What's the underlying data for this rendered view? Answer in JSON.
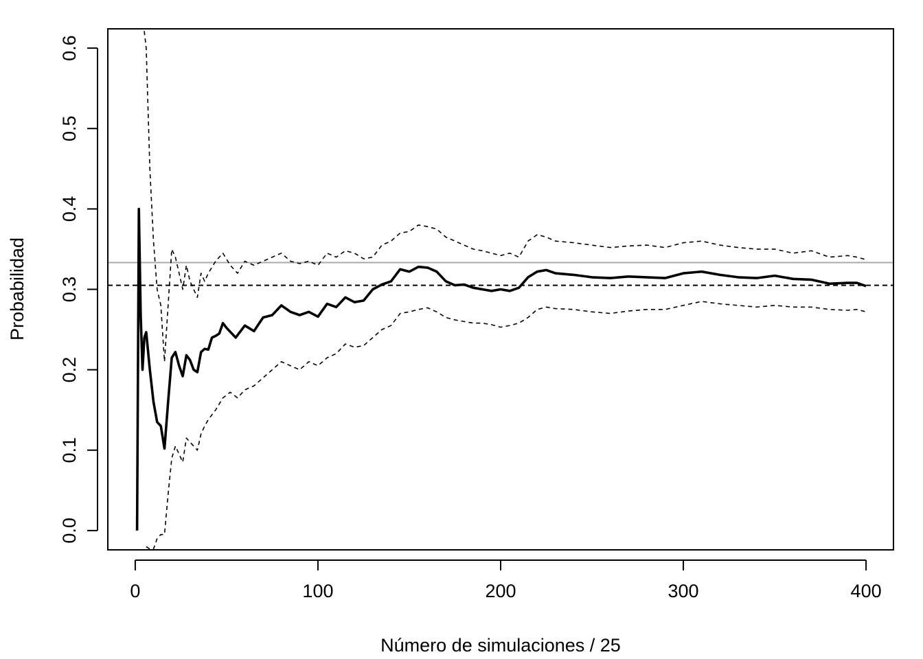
{
  "chart_data": {
    "type": "line",
    "title": "",
    "xlabel": "Número de simulaciones / 25",
    "ylabel": "Probabilidad",
    "xlim": [
      -15,
      415
    ],
    "ylim": [
      -0.024,
      0.624
    ],
    "xticks": [
      0,
      100,
      200,
      300,
      400
    ],
    "xtick_labels": [
      "0",
      "100",
      "200",
      "300",
      "400"
    ],
    "yticks": [
      0.0,
      0.1,
      0.2,
      0.3,
      0.4,
      0.5,
      0.6
    ],
    "ytick_labels": [
      "0.0",
      "0.1",
      "0.2",
      "0.3",
      "0.4",
      "0.5",
      "0.6"
    ],
    "grid": false,
    "legend": "none",
    "reference_lines": [
      {
        "y": 0.3333,
        "color": "#a8a8a8",
        "style": "solid"
      },
      {
        "y": 0.305,
        "color": "#000000",
        "style": "dashed"
      }
    ],
    "series": [
      {
        "role": "estimate",
        "color": "#000000",
        "style": "solid",
        "x": [
          1,
          2,
          3,
          4,
          5,
          6,
          8,
          10,
          12,
          14,
          16,
          18,
          20,
          22,
          24,
          26,
          28,
          30,
          32,
          34,
          36,
          38,
          40,
          42,
          44,
          46,
          48,
          50,
          55,
          60,
          65,
          70,
          75,
          80,
          85,
          90,
          95,
          100,
          105,
          110,
          115,
          120,
          125,
          130,
          135,
          140,
          145,
          150,
          155,
          160,
          165,
          170,
          175,
          180,
          185,
          190,
          195,
          200,
          205,
          210,
          215,
          220,
          225,
          230,
          240,
          250,
          260,
          270,
          280,
          290,
          300,
          310,
          320,
          330,
          340,
          350,
          360,
          370,
          380,
          390,
          395,
          400
        ],
        "y": [
          0.0,
          0.4,
          0.2667,
          0.2,
          0.24,
          0.2467,
          0.2,
          0.16,
          0.135,
          0.13,
          0.102,
          0.16,
          0.215,
          0.222,
          0.205,
          0.192,
          0.218,
          0.212,
          0.2,
          0.197,
          0.222,
          0.226,
          0.225,
          0.24,
          0.242,
          0.245,
          0.258,
          0.252,
          0.24,
          0.255,
          0.248,
          0.265,
          0.268,
          0.28,
          0.272,
          0.268,
          0.272,
          0.266,
          0.282,
          0.278,
          0.29,
          0.284,
          0.286,
          0.3,
          0.306,
          0.31,
          0.325,
          0.322,
          0.328,
          0.327,
          0.322,
          0.31,
          0.305,
          0.306,
          0.302,
          0.3,
          0.298,
          0.3,
          0.298,
          0.302,
          0.315,
          0.322,
          0.324,
          0.32,
          0.318,
          0.315,
          0.314,
          0.316,
          0.315,
          0.314,
          0.32,
          0.322,
          0.318,
          0.315,
          0.314,
          0.317,
          0.313,
          0.312,
          0.307,
          0.308,
          0.308,
          0.304
        ]
      },
      {
        "role": "upper-bound",
        "color": "#000000",
        "style": "dashed",
        "x": [
          4,
          6,
          8,
          10,
          12,
          14,
          16,
          18,
          20,
          22,
          24,
          26,
          28,
          30,
          32,
          34,
          36,
          38,
          40,
          44,
          48,
          52,
          56,
          60,
          65,
          70,
          75,
          80,
          85,
          90,
          95,
          100,
          105,
          110,
          115,
          120,
          125,
          130,
          135,
          140,
          145,
          150,
          155,
          160,
          165,
          170,
          175,
          180,
          185,
          190,
          195,
          200,
          205,
          210,
          215,
          220,
          225,
          230,
          240,
          250,
          260,
          270,
          280,
          290,
          300,
          310,
          320,
          330,
          340,
          350,
          360,
          370,
          380,
          390,
          395,
          400
        ],
        "y": [
          0.64,
          0.6,
          0.45,
          0.36,
          0.3,
          0.28,
          0.21,
          0.28,
          0.35,
          0.34,
          0.32,
          0.3,
          0.33,
          0.31,
          0.3,
          0.29,
          0.32,
          0.31,
          0.32,
          0.335,
          0.345,
          0.33,
          0.32,
          0.335,
          0.33,
          0.335,
          0.34,
          0.345,
          0.335,
          0.332,
          0.335,
          0.33,
          0.345,
          0.34,
          0.348,
          0.345,
          0.338,
          0.34,
          0.355,
          0.36,
          0.37,
          0.372,
          0.38,
          0.378,
          0.375,
          0.365,
          0.36,
          0.355,
          0.35,
          0.348,
          0.345,
          0.342,
          0.345,
          0.34,
          0.36,
          0.368,
          0.365,
          0.36,
          0.358,
          0.355,
          0.352,
          0.354,
          0.355,
          0.352,
          0.358,
          0.36,
          0.355,
          0.352,
          0.35,
          0.35,
          0.345,
          0.348,
          0.34,
          0.342,
          0.34,
          0.337
        ]
      },
      {
        "role": "lower-bound",
        "color": "#000000",
        "style": "dashed",
        "x": [
          6,
          8,
          10,
          12,
          14,
          16,
          18,
          20,
          22,
          24,
          26,
          28,
          30,
          32,
          34,
          36,
          38,
          40,
          44,
          48,
          52,
          56,
          60,
          65,
          70,
          75,
          80,
          85,
          90,
          95,
          100,
          105,
          110,
          115,
          120,
          125,
          130,
          135,
          140,
          145,
          150,
          155,
          160,
          165,
          170,
          175,
          180,
          185,
          190,
          195,
          200,
          205,
          210,
          215,
          220,
          225,
          230,
          240,
          250,
          260,
          270,
          280,
          290,
          300,
          310,
          320,
          330,
          340,
          350,
          360,
          370,
          380,
          390,
          395,
          400
        ],
        "y": [
          -0.02,
          -0.023,
          -0.023,
          -0.01,
          -0.005,
          -0.005,
          0.045,
          0.09,
          0.105,
          0.095,
          0.085,
          0.115,
          0.11,
          0.105,
          0.1,
          0.12,
          0.13,
          0.138,
          0.15,
          0.165,
          0.172,
          0.165,
          0.175,
          0.18,
          0.19,
          0.2,
          0.21,
          0.205,
          0.2,
          0.21,
          0.205,
          0.215,
          0.22,
          0.232,
          0.228,
          0.23,
          0.24,
          0.25,
          0.255,
          0.27,
          0.272,
          0.275,
          0.277,
          0.272,
          0.265,
          0.262,
          0.26,
          0.258,
          0.258,
          0.256,
          0.253,
          0.255,
          0.258,
          0.265,
          0.275,
          0.278,
          0.276,
          0.275,
          0.272,
          0.27,
          0.273,
          0.275,
          0.275,
          0.28,
          0.285,
          0.282,
          0.28,
          0.278,
          0.28,
          0.278,
          0.278,
          0.275,
          0.274,
          0.275,
          0.272
        ]
      }
    ]
  }
}
